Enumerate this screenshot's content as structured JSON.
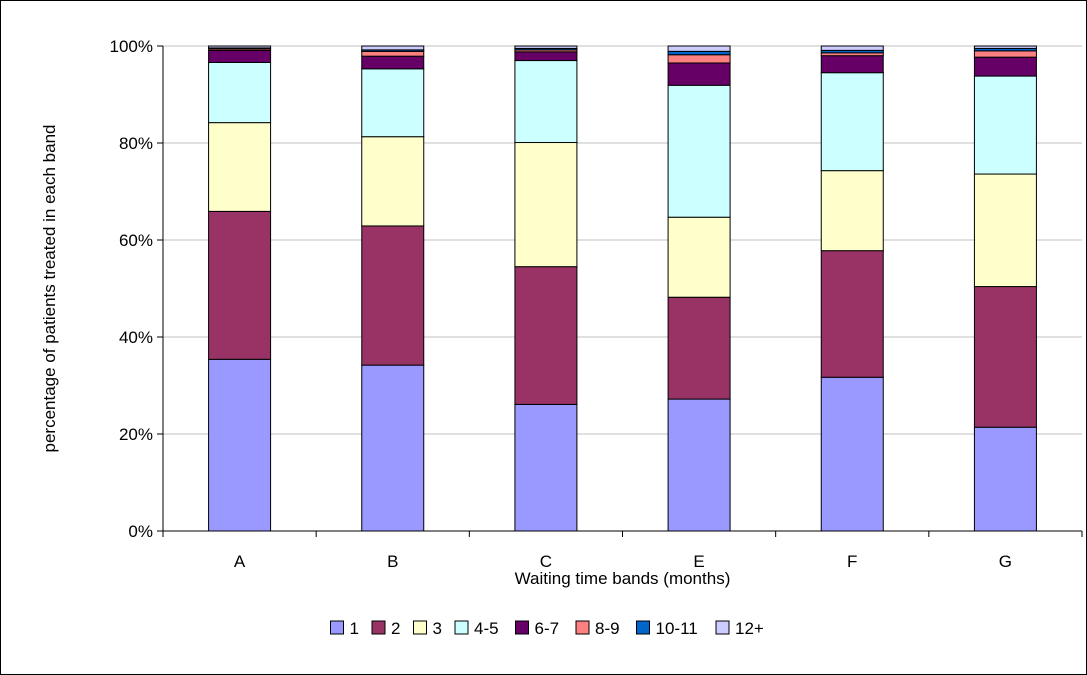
{
  "chart_data": {
    "type": "bar",
    "stacked": true,
    "percent_stacked": true,
    "categories": [
      "A",
      "B",
      "C",
      "E",
      "F",
      "G"
    ],
    "series": [
      {
        "name": "1",
        "color": "#9999ff",
        "values": [
          35.4,
          34.2,
          26.1,
          27.2,
          31.7,
          21.4
        ]
      },
      {
        "name": "2",
        "color": "#993366",
        "values": [
          30.5,
          28.7,
          28.4,
          21.0,
          26.1,
          29.0
        ]
      },
      {
        "name": "3",
        "color": "#ffffcc",
        "values": [
          18.3,
          18.4,
          25.6,
          16.5,
          16.5,
          23.2
        ]
      },
      {
        "name": "4-5",
        "color": "#ccffff",
        "values": [
          12.4,
          14.0,
          16.9,
          27.2,
          20.2,
          20.2
        ]
      },
      {
        "name": "6-7",
        "color": "#660066",
        "values": [
          2.5,
          2.6,
          1.8,
          4.6,
          3.5,
          3.9
        ]
      },
      {
        "name": "8-9",
        "color": "#ff8080",
        "values": [
          0.3,
          1.0,
          0.4,
          1.7,
          0.6,
          1.3
        ]
      },
      {
        "name": "10-11",
        "color": "#0066cc",
        "values": [
          0.2,
          0.3,
          0.3,
          0.7,
          0.5,
          0.5
        ]
      },
      {
        "name": "12+",
        "color": "#ccccff",
        "values": [
          0.4,
          0.8,
          0.5,
          1.1,
          0.9,
          0.5
        ]
      }
    ],
    "xlabel": "Waiting time bands (months)",
    "ylabel": "percentage of patients treated in each band",
    "ylim": [
      0,
      100
    ],
    "yticks": [
      "0%",
      "20%",
      "40%",
      "60%",
      "80%",
      "100%"
    ],
    "grid": true,
    "legend_position": "bottom"
  }
}
